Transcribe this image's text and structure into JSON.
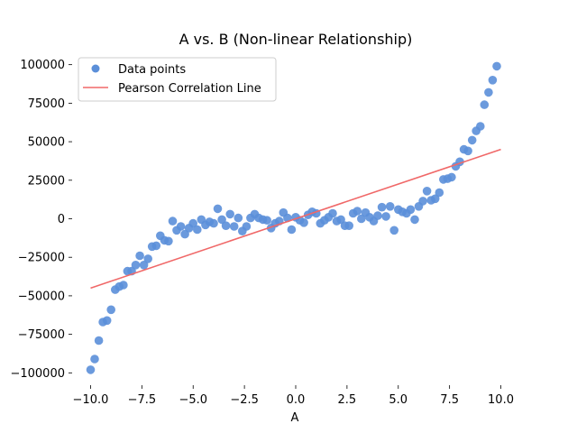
{
  "chart_data": {
    "type": "scatter",
    "title": "A vs. B (Non-linear Relationship)",
    "xlabel": "A",
    "ylabel": "",
    "xlim": [
      -10.9,
      10.9
    ],
    "ylim": [
      -108000,
      108000
    ],
    "xticks": [
      -10,
      -7.5,
      -5,
      -2.5,
      0,
      2.5,
      5,
      7.5,
      10
    ],
    "xtick_labels": [
      "−10.0",
      "−7.5",
      "−5.0",
      "−2.5",
      "0.0",
      "2.5",
      "5.0",
      "7.5",
      "10.0"
    ],
    "yticks": [
      -100000,
      -75000,
      -50000,
      -25000,
      0,
      25000,
      50000,
      75000,
      100000
    ],
    "ytick_labels": [
      "−100000",
      "−75000",
      "−50000",
      "−25000",
      "0",
      "25000",
      "50000",
      "75000",
      "100000"
    ],
    "grid": false,
    "legend": {
      "placement": "upper-left",
      "entries": [
        {
          "label": "Data points",
          "marker": "circle",
          "color": "#5b8fd9"
        },
        {
          "label": "Pearson Correlation Line",
          "marker": "line",
          "color": "#f06868"
        }
      ]
    },
    "series": [
      {
        "name": "Data points",
        "color": "#5b8fd9",
        "points": [
          [
            -10.0,
            -98000
          ],
          [
            -9.8,
            -91000
          ],
          [
            -9.6,
            -79000
          ],
          [
            -9.4,
            -67000
          ],
          [
            -9.2,
            -66000
          ],
          [
            -9.0,
            -59000
          ],
          [
            -8.8,
            -46000
          ],
          [
            -8.6,
            -44000
          ],
          [
            -8.4,
            -43000
          ],
          [
            -8.2,
            -34000
          ],
          [
            -8.0,
            -34000
          ],
          [
            -7.8,
            -30000
          ],
          [
            -7.6,
            -24000
          ],
          [
            -7.4,
            -30000
          ],
          [
            -7.2,
            -26000
          ],
          [
            -7.0,
            -18000
          ],
          [
            -6.8,
            -17500
          ],
          [
            -6.6,
            -11000
          ],
          [
            -6.4,
            -14000
          ],
          [
            -6.2,
            -14500
          ],
          [
            -6.0,
            -1500
          ],
          [
            -5.8,
            -7500
          ],
          [
            -5.6,
            -5000
          ],
          [
            -5.4,
            -10000
          ],
          [
            -5.2,
            -6000
          ],
          [
            -5.0,
            -3000
          ],
          [
            -4.8,
            -7000
          ],
          [
            -4.6,
            -500
          ],
          [
            -4.4,
            -4000
          ],
          [
            -4.2,
            -2000
          ],
          [
            -4.0,
            -3000
          ],
          [
            -3.8,
            6500
          ],
          [
            -3.6,
            -500
          ],
          [
            -3.4,
            -4500
          ],
          [
            -3.2,
            3000
          ],
          [
            -3.0,
            -5000
          ],
          [
            -2.8,
            500
          ],
          [
            -2.6,
            -8000
          ],
          [
            -2.4,
            -5000
          ],
          [
            -2.2,
            500
          ],
          [
            -2.0,
            3000
          ],
          [
            -1.8,
            500
          ],
          [
            -1.6,
            -500
          ],
          [
            -1.4,
            -1000
          ],
          [
            -1.2,
            -6000
          ],
          [
            -1.0,
            -3000
          ],
          [
            -0.8,
            -1500
          ],
          [
            -0.6,
            4000
          ],
          [
            -0.4,
            500
          ],
          [
            -0.2,
            -7000
          ],
          [
            0.0,
            1000
          ],
          [
            0.2,
            -1000
          ],
          [
            0.4,
            -2500
          ],
          [
            0.6,
            2500
          ],
          [
            0.8,
            4500
          ],
          [
            1.0,
            3500
          ],
          [
            1.2,
            -3000
          ],
          [
            1.4,
            -1000
          ],
          [
            1.6,
            1000
          ],
          [
            1.8,
            3500
          ],
          [
            2.0,
            -1500
          ],
          [
            2.2,
            -500
          ],
          [
            2.4,
            -4500
          ],
          [
            2.6,
            -4500
          ],
          [
            2.8,
            3500
          ],
          [
            3.0,
            5000
          ],
          [
            3.2,
            0
          ],
          [
            3.4,
            4000
          ],
          [
            3.6,
            1000
          ],
          [
            3.8,
            -1500
          ],
          [
            4.0,
            2000
          ],
          [
            4.2,
            7500
          ],
          [
            4.4,
            1500
          ],
          [
            4.6,
            8000
          ],
          [
            4.8,
            -7500
          ],
          [
            5.0,
            6000
          ],
          [
            5.2,
            4500
          ],
          [
            5.4,
            3500
          ],
          [
            5.6,
            6000
          ],
          [
            5.8,
            -500
          ],
          [
            6.0,
            8000
          ],
          [
            6.2,
            11500
          ],
          [
            6.4,
            18000
          ],
          [
            6.6,
            12000
          ],
          [
            6.8,
            13000
          ],
          [
            7.0,
            17000
          ],
          [
            7.2,
            25500
          ],
          [
            7.4,
            26000
          ],
          [
            7.6,
            27000
          ],
          [
            7.8,
            34000
          ],
          [
            8.0,
            37000
          ],
          [
            8.2,
            45000
          ],
          [
            8.4,
            44000
          ],
          [
            8.6,
            51000
          ],
          [
            8.8,
            57000
          ],
          [
            9.0,
            60000
          ],
          [
            9.2,
            74000
          ],
          [
            9.4,
            82000
          ],
          [
            9.6,
            90000
          ],
          [
            9.8,
            99000
          ]
        ]
      },
      {
        "name": "Pearson Correlation Line",
        "color": "#f06868",
        "type": "line",
        "x": [
          -10.0,
          10.0
        ],
        "y": [
          -45000,
          45000
        ]
      }
    ]
  }
}
